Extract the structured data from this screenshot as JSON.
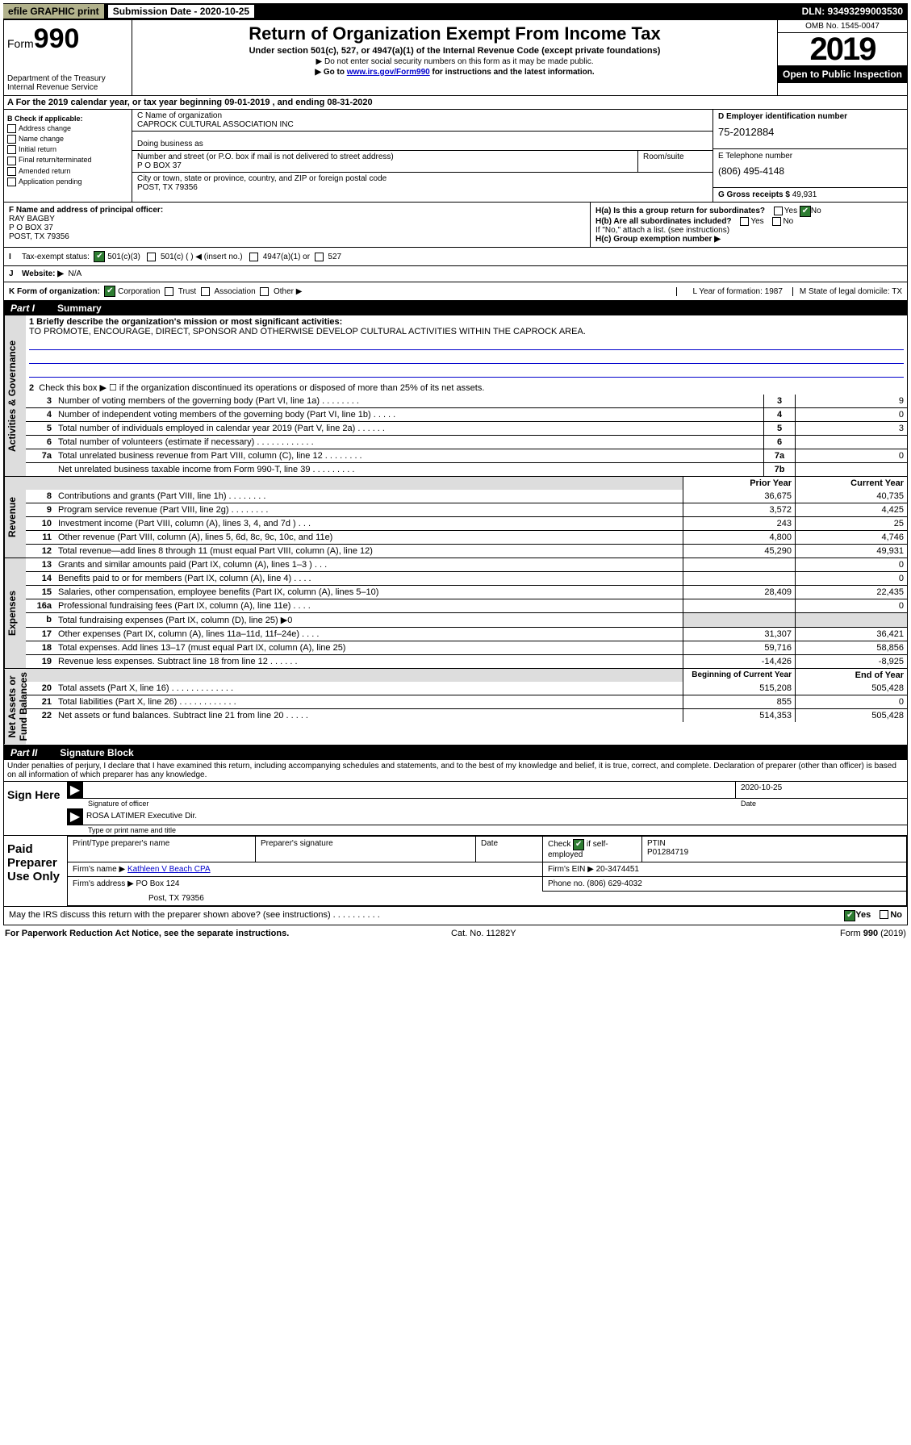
{
  "topbar": {
    "efile": "efile GRAPHIC print",
    "submission": "Submission Date - 2020-10-25",
    "dln": "DLN: 93493299003530"
  },
  "header": {
    "form_word": "Form",
    "form_num": "990",
    "dept": "Department of the Treasury\nInternal Revenue Service",
    "title": "Return of Organization Exempt From Income Tax",
    "sub1": "Under section 501(c), 527, or 4947(a)(1) of the Internal Revenue Code (except private foundations)",
    "sub2": "▶ Do not enter social security numbers on this form as it may be made public.",
    "sub3_pre": "▶ Go to ",
    "sub3_link": "www.irs.gov/Form990",
    "sub3_post": " for instructions and the latest information.",
    "omb": "OMB No. 1545-0047",
    "year": "2019",
    "open": "Open to Public Inspection"
  },
  "row_a": "A  For the 2019 calendar year, or tax year beginning 09-01-2019     , and ending 08-31-2020",
  "box_b": {
    "label": "B Check if applicable:",
    "items": [
      "Address change",
      "Name change",
      "Initial return",
      "Final return/terminated",
      "Amended return",
      "Application pending"
    ]
  },
  "box_c": {
    "name_lbl": "C Name of organization",
    "name": "CAPROCK CULTURAL ASSOCIATION INC",
    "dba_lbl": "Doing business as",
    "street_lbl": "Number and street (or P.O. box if mail is not delivered to street address)",
    "street": "P O BOX 37",
    "room_lbl": "Room/suite",
    "city_lbl": "City or town, state or province, country, and ZIP or foreign postal code",
    "city": "POST, TX  79356"
  },
  "box_d": {
    "lbl": "D Employer identification number",
    "val": "75-2012884"
  },
  "box_e": {
    "lbl": "E Telephone number",
    "val": "(806) 495-4148"
  },
  "box_g": {
    "lbl": "G Gross receipts $",
    "val": "49,931"
  },
  "box_f": {
    "lbl": "F  Name and address of principal officer:",
    "name": "RAY BAGBY",
    "addr1": "P O BOX 37",
    "addr2": "POST, TX  79356"
  },
  "box_h": {
    "a": "H(a)  Is this a group return for subordinates?",
    "b": "H(b)  Are all subordinates included?",
    "b2": "If \"No,\" attach a list. (see instructions)",
    "c": "H(c)  Group exemption number ▶"
  },
  "row_i": {
    "lbl": "I",
    "txt": "Tax-exempt status:",
    "opt1": "501(c)(3)",
    "opt2": "501(c) (   ) ◀ (insert no.)",
    "opt3": "4947(a)(1)  or",
    "opt4": "527"
  },
  "row_j": {
    "lbl": "J",
    "txt": "Website: ▶",
    "val": "N/A"
  },
  "row_k": {
    "lbl": "K Form of organization:",
    "o1": "Corporation",
    "o2": "Trust",
    "o3": "Association",
    "o4": "Other ▶",
    "l": "L Year of formation: 1987",
    "m": "M State of legal domicile: TX"
  },
  "parts": {
    "p1": "Part I",
    "p1l": "Summary",
    "p2": "Part II",
    "p2l": "Signature Block"
  },
  "vlabels": {
    "ag": "Activities & Governance",
    "rev": "Revenue",
    "exp": "Expenses",
    "na": "Net Assets or\nFund Balances"
  },
  "p1": {
    "l1_lbl": "1  Briefly describe the organization's mission or most significant activities:",
    "l1_txt": "TO PROMOTE, ENCOURAGE, DIRECT, SPONSOR AND OTHERWISE DEVELOP CULTURAL ACTIVITIES WITHIN THE CAPROCK AREA.",
    "l2": "Check this box ▶ ☐  if the organization discontinued its operations or disposed of more than 25% of its net assets.",
    "rows_ag": [
      {
        "n": "3",
        "t": "Number of voting members of the governing body (Part VI, line 1a)   .    .    .    .    .    .    .    .",
        "b": "3",
        "v": "9"
      },
      {
        "n": "4",
        "t": "Number of independent voting members of the governing body (Part VI, line 1b)   .    .    .    .    .",
        "b": "4",
        "v": "0"
      },
      {
        "n": "5",
        "t": "Total number of individuals employed in calendar year 2019 (Part V, line 2a)   .    .    .    .    .    .",
        "b": "5",
        "v": "3"
      },
      {
        "n": "6",
        "t": "Total number of volunteers (estimate if necessary)    .    .    .    .    .    .    .    .    .    .    .    .",
        "b": "6",
        "v": ""
      },
      {
        "n": "7a",
        "t": "Total unrelated business revenue from Part VIII, column (C), line 12  .    .    .    .    .    .    .    .",
        "b": "7a",
        "v": "0"
      },
      {
        "n": "",
        "t": "Net unrelated business taxable income from Form 990-T, line 39   .    .    .    .    .    .    .    .    .",
        "b": "7b",
        "v": ""
      }
    ],
    "hdr_prior": "Prior Year",
    "hdr_curr": "Current Year",
    "rows_rev": [
      {
        "n": "8",
        "t": "Contributions and grants (Part VIII, line 1h)   .    .    .    .    .    .    .    .",
        "p": "36,675",
        "c": "40,735"
      },
      {
        "n": "9",
        "t": "Program service revenue (Part VIII, line 2g)   .    .    .    .    .    .    .    .",
        "p": "3,572",
        "c": "4,425"
      },
      {
        "n": "10",
        "t": "Investment income (Part VIII, column (A), lines 3, 4, and 7d )   .    .    .",
        "p": "243",
        "c": "25"
      },
      {
        "n": "11",
        "t": "Other revenue (Part VIII, column (A), lines 5, 6d, 8c, 9c, 10c, and 11e)",
        "p": "4,800",
        "c": "4,746"
      },
      {
        "n": "12",
        "t": "Total revenue—add lines 8 through 11 (must equal Part VIII, column (A), line 12)",
        "p": "45,290",
        "c": "49,931"
      }
    ],
    "rows_exp": [
      {
        "n": "13",
        "t": "Grants and similar amounts paid (Part IX, column (A), lines 1–3 )   .    .    .",
        "p": "",
        "c": "0"
      },
      {
        "n": "14",
        "t": "Benefits paid to or for members (Part IX, column (A), line 4)   .    .    .    .",
        "p": "",
        "c": "0"
      },
      {
        "n": "15",
        "t": "Salaries, other compensation, employee benefits (Part IX, column (A), lines 5–10)",
        "p": "28,409",
        "c": "22,435"
      },
      {
        "n": "16a",
        "t": "Professional fundraising fees (Part IX, column (A), line 11e)   .    .    .    .",
        "p": "",
        "c": "0"
      },
      {
        "n": "b",
        "t": "Total fundraising expenses (Part IX, column (D), line 25) ▶0",
        "p": "shade",
        "c": "shade"
      },
      {
        "n": "17",
        "t": "Other expenses (Part IX, column (A), lines 11a–11d, 11f–24e)   .    .    .    .",
        "p": "31,307",
        "c": "36,421"
      },
      {
        "n": "18",
        "t": "Total expenses. Add lines 13–17 (must equal Part IX, column (A), line 25)",
        "p": "59,716",
        "c": "58,856"
      },
      {
        "n": "19",
        "t": "Revenue less expenses. Subtract line 18 from line 12   .    .    .    .    .    .",
        "p": "-14,426",
        "c": "-8,925"
      }
    ],
    "hdr_beg": "Beginning of Current Year",
    "hdr_end": "End of Year",
    "rows_na": [
      {
        "n": "20",
        "t": "Total assets (Part X, line 16)   .    .    .    .    .    .    .    .    .    .    .    .    .",
        "p": "515,208",
        "c": "505,428"
      },
      {
        "n": "21",
        "t": "Total liabilities (Part X, line 26)   .    .    .    .    .    .    .    .    .    .    .    .",
        "p": "855",
        "c": "0"
      },
      {
        "n": "22",
        "t": "Net assets or fund balances. Subtract line 21 from line 20   .    .    .    .    .",
        "p": "514,353",
        "c": "505,428"
      }
    ]
  },
  "sig": {
    "perjury": "Under penalties of perjury, I declare that I have examined this return, including accompanying schedules and statements, and to the best of my knowledge and belief, it is true, correct, and complete. Declaration of preparer (other than officer) is based on all information of which preparer has any knowledge.",
    "sign_here": "Sign Here",
    "sig_officer": "Signature of officer",
    "date": "2020-10-25",
    "date_lbl": "Date",
    "name": "ROSA LATIMER  Executive Dir.",
    "name_lbl": "Type or print name and title",
    "paid": "Paid Preparer Use Only",
    "c1": "Print/Type preparer's name",
    "c2": "Preparer's signature",
    "c3": "Date",
    "c4_pre": "Check",
    "c4_post": "if self-employed",
    "c5": "PTIN",
    "ptin": "P01284719",
    "firm_name_lbl": "Firm's name      ▶",
    "firm_name": "Kathleen V Beach CPA",
    "firm_ein_lbl": "Firm's EIN ▶",
    "firm_ein": "20-3474451",
    "firm_addr_lbl": "Firm's address ▶",
    "firm_addr1": "PO Box 124",
    "firm_addr2": "Post, TX  79356",
    "phone_lbl": "Phone no.",
    "phone": "(806) 629-4032",
    "discuss": "May the IRS discuss this return with the preparer shown above? (see instructions)    .    .    .    .    .    .    .    .    .    ."
  },
  "footer": {
    "l": "For Paperwork Reduction Act Notice, see the separate instructions.",
    "m": "Cat. No. 11282Y",
    "r": "Form 990 (2019)"
  },
  "yes": "Yes",
  "no": "No"
}
